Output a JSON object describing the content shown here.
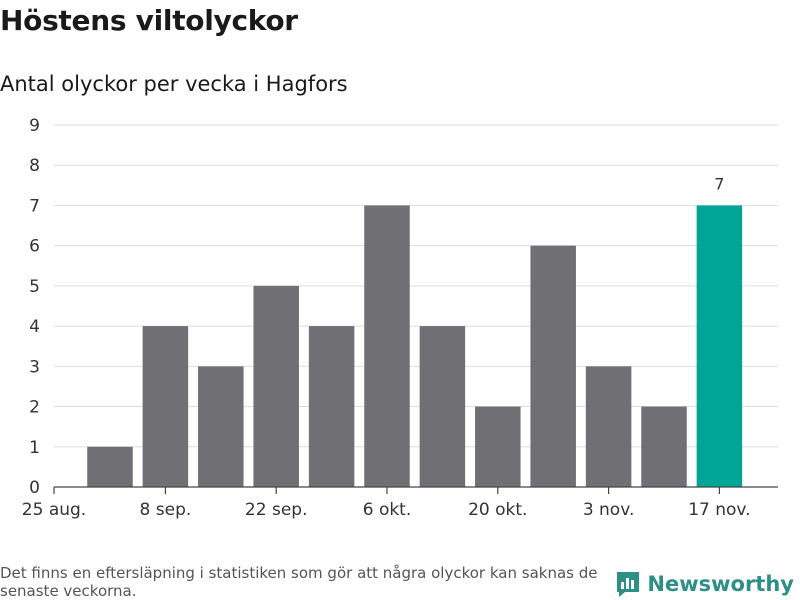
{
  "header": {
    "title": "Höstens viltolyckor",
    "subtitle": "Antal olyckor per vecka i Hagfors"
  },
  "chart_data": {
    "type": "bar",
    "x_tick_labels": [
      "25 aug.",
      "8 sep.",
      "22 sep.",
      "6 okt.",
      "20 okt.",
      "3 nov.",
      "17 nov."
    ],
    "values": [
      0,
      1,
      4,
      3,
      5,
      4,
      7,
      4,
      2,
      6,
      3,
      2,
      7
    ],
    "highlight_index": 12,
    "highlight_label": "7",
    "ylim": [
      0,
      9
    ],
    "yticks": [
      0,
      1,
      2,
      3,
      4,
      5,
      6,
      7,
      8,
      9
    ],
    "grid": true,
    "bar_color": "#706f74",
    "highlight_color": "#00a598"
  },
  "footer": {
    "note": "Det finns en eftersläpning i statistiken som gör att några olyckor kan saknas de senaste veckorna.",
    "brand": "Newsworthy",
    "brand_color": "#2e8f86"
  }
}
